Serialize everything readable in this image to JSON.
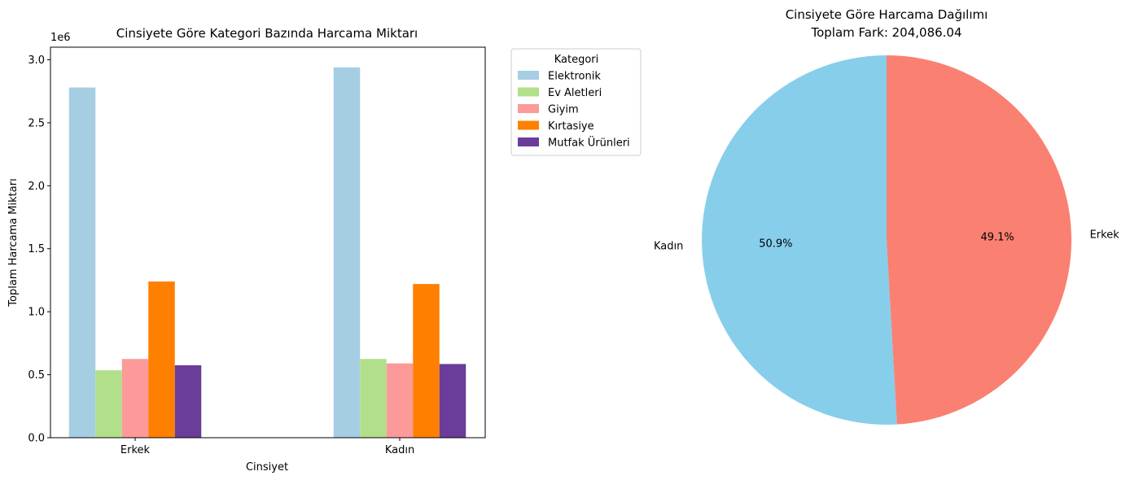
{
  "chart_data": [
    {
      "type": "bar",
      "title": "Cinsiyete Göre Kategori Bazında Harcama Miktarı",
      "xlabel": "Cinsiyet",
      "ylabel": "Toplam Harcama Miktarı",
      "y_offset_label": "1e6",
      "ylim": [
        0,
        3.1
      ],
      "yticks": [
        "0.0",
        "0.5",
        "1.0",
        "1.5",
        "2.0",
        "2.5",
        "3.0"
      ],
      "categories": [
        "Erkek",
        "Kadın"
      ],
      "legend": {
        "title": "Kategori",
        "placement": "outside-top-right"
      },
      "series": [
        {
          "name": "Elektronik",
          "color": "#a6cee3",
          "values": [
            2.78,
            2.94
          ]
        },
        {
          "name": "Ev Aletleri",
          "color": "#b2df8a",
          "values": [
            0.535,
            0.625
          ]
        },
        {
          "name": "Giyim",
          "color": "#fb9a99",
          "values": [
            0.625,
            0.59
          ]
        },
        {
          "name": "Kırtasiye",
          "color": "#ff7f00",
          "values": [
            1.24,
            1.22
          ]
        },
        {
          "name": "Mutfak Ürünleri",
          "color": "#6a3d9a",
          "values": [
            0.575,
            0.585
          ]
        }
      ]
    },
    {
      "type": "pie",
      "title": "Cinsiyete Göre Harcama Dağılımı",
      "subtitle": "Toplam Fark: 204,086.04",
      "slices": [
        {
          "label": "Kadın",
          "percent": 50.9,
          "pct_label": "50.9%",
          "color": "#87ceeb"
        },
        {
          "label": "Erkek",
          "percent": 49.1,
          "pct_label": "49.1%",
          "color": "#fa8072"
        }
      ],
      "start_angle": 90
    }
  ]
}
